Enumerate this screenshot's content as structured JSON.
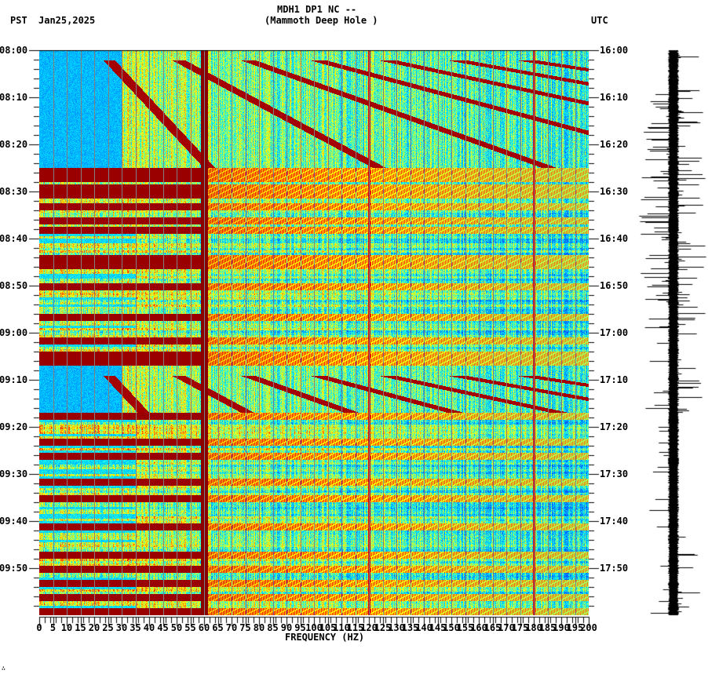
{
  "header": {
    "station_line": "MDH1 DP1 NC --",
    "station_name": "(Mammoth Deep Hole )",
    "left_tz": "PST",
    "date": "Jan25,2025",
    "right_tz": "UTC"
  },
  "footer": {
    "corner_mark": "∴"
  },
  "colors": {
    "colormap": [
      "#0050ff",
      "#0090ff",
      "#00e8ff",
      "#80ff80",
      "#ffff00",
      "#ff8000",
      "#ff0000",
      "#800000"
    ],
    "gridline": "#808080",
    "axis": "#000000",
    "trace": "#000000"
  },
  "chart_data": [
    {
      "type": "heatmap",
      "title": "MDH1 DP1 NC -- (Mammoth Deep Hole )",
      "subtitle": "Jan25,2025",
      "xlabel": "FREQUENCY (HZ)",
      "ylabel_left": "PST",
      "ylabel_right": "UTC",
      "xlim": [
        0,
        200
      ],
      "x_ticks": [
        0,
        5,
        10,
        15,
        20,
        25,
        30,
        35,
        40,
        45,
        50,
        55,
        60,
        65,
        70,
        75,
        80,
        85,
        90,
        95,
        100,
        105,
        110,
        115,
        120,
        125,
        130,
        135,
        140,
        145,
        150,
        155,
        160,
        165,
        170,
        175,
        180,
        185,
        190,
        195,
        200
      ],
      "x_tick_labels": [
        "0",
        "5",
        "10",
        "15",
        "20",
        "25",
        "30",
        "35",
        "40",
        "45",
        "50",
        "55",
        "60",
        "65",
        "70",
        "75",
        "80",
        "85",
        "90",
        "95",
        "100",
        "105",
        "110",
        "115",
        "120",
        "125",
        "130",
        "135",
        "140",
        "145",
        "150",
        "155",
        "160",
        "165",
        "170",
        "175",
        "180",
        "185",
        "190",
        "195",
        "200"
      ],
      "y_ticks_left": [
        "08:00",
        "08:10",
        "08:20",
        "08:30",
        "08:40",
        "08:50",
        "09:00",
        "09:10",
        "09:20",
        "09:30",
        "09:40",
        "09:50"
      ],
      "y_ticks_right": [
        "16:00",
        "16:10",
        "16:20",
        "16:30",
        "16:40",
        "16:50",
        "17:00",
        "17:10",
        "17:20",
        "17:30",
        "17:40",
        "17:50"
      ],
      "ylim_minutes": [
        0,
        120
      ],
      "vertical_gridlines_every_hz": 5,
      "persistent_lines_hz": [
        60,
        120,
        180
      ],
      "quiet_periods_minutes": [
        [
          0,
          25
        ],
        [
          67,
          77
        ]
      ],
      "intense_bands_minutes": [
        25.5,
        27,
        29,
        30.5,
        33,
        36,
        38,
        44,
        45.5,
        50,
        56.5,
        61.5,
        64.5,
        66,
        77.5,
        83,
        86,
        91.5,
        95,
        101,
        107,
        110,
        113,
        116,
        119
      ],
      "colorbar": "jet (blue=low, dark red=high)"
    },
    {
      "type": "line",
      "title": "seismogram trace",
      "orientation": "vertical",
      "time_range_minutes": [
        0,
        120
      ],
      "notes": "high amplitude spikes between ~08:25 and ~08:55, sporadic spikes to 09:57"
    }
  ]
}
